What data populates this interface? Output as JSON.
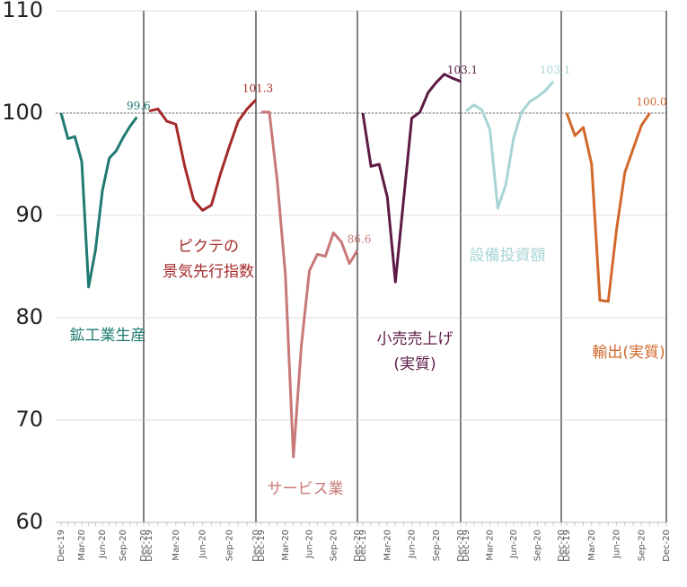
{
  "chart_data": [
    {
      "type": "line",
      "title": [
        "鉱工業生産"
      ],
      "color": "#1f7a72",
      "categories": [
        "Dec-19",
        null,
        null,
        "Mar-20",
        null,
        null,
        "Jun-20",
        null,
        null,
        "Sep-20",
        null,
        null,
        "Dec-20"
      ],
      "values": [
        100.0,
        97.5,
        97.7,
        95.3,
        83.0,
        86.6,
        92.4,
        95.6,
        96.3,
        97.6,
        98.7,
        99.6,
        null
      ],
      "value_labels": [
        null,
        null,
        null,
        null,
        null,
        null,
        null,
        null,
        null,
        null,
        null,
        "99.6",
        null
      ],
      "ylim": [
        60,
        110
      ],
      "yticks": [
        60,
        70,
        80,
        90,
        100,
        110
      ],
      "reference_line": 100
    },
    {
      "type": "line",
      "title": [
        "ピクテの",
        "景気先行指数"
      ],
      "color": "#a52a2a",
      "categories": [
        "Dec-19",
        null,
        null,
        "Mar-20",
        null,
        null,
        "Jun-20",
        null,
        null,
        "Sep-20",
        null,
        null,
        "Dec-20"
      ],
      "values": [
        100.2,
        100.4,
        99.2,
        98.9,
        94.8,
        91.5,
        90.5,
        91.0,
        94.0,
        96.7,
        99.2,
        100.4,
        101.3
      ],
      "value_labels": [
        null,
        null,
        null,
        null,
        null,
        null,
        null,
        null,
        null,
        null,
        null,
        null,
        "101.3"
      ],
      "ylim": [
        60,
        110
      ],
      "yticks": [
        60,
        70,
        80,
        90,
        100,
        110
      ],
      "reference_line": 100
    },
    {
      "type": "line",
      "title": [
        "サービス業"
      ],
      "color": "#c87878",
      "categories": [
        "Dec-19",
        null,
        null,
        "Mar-20",
        null,
        null,
        "Jun-20",
        null,
        null,
        "Sep-20",
        null,
        null,
        "Dec-20"
      ],
      "values": [
        100.1,
        100.1,
        93.3,
        84.2,
        66.4,
        77.3,
        84.6,
        86.2,
        86.0,
        88.3,
        87.4,
        85.3,
        86.6
      ],
      "value_labels": [
        null,
        null,
        null,
        null,
        null,
        null,
        null,
        null,
        null,
        null,
        null,
        null,
        "86.6"
      ],
      "ylim": [
        60,
        110
      ],
      "yticks": [
        60,
        70,
        80,
        90,
        100,
        110
      ],
      "reference_line": 100
    },
    {
      "type": "line",
      "title": [
        "小売売上げ",
        "(実質)"
      ],
      "color": "#5c1a44",
      "categories": [
        "Dec-19",
        null,
        null,
        "Mar-20",
        null,
        null,
        "Jun-20",
        null,
        null,
        "Sep-20",
        null,
        null,
        "Dec-20"
      ],
      "values": [
        100.0,
        94.8,
        95.0,
        91.8,
        83.5,
        91.5,
        99.5,
        100.1,
        102.0,
        103.0,
        103.8,
        103.4,
        103.1
      ],
      "value_labels": [
        null,
        null,
        null,
        null,
        null,
        null,
        null,
        null,
        null,
        null,
        null,
        null,
        "103.1"
      ],
      "ylim": [
        60,
        110
      ],
      "yticks": [
        60,
        70,
        80,
        90,
        100,
        110
      ],
      "reference_line": 100
    },
    {
      "type": "line",
      "title": [
        "設備投資額"
      ],
      "color": "#a8d4d4",
      "categories": [
        "Dec-19",
        null,
        null,
        "Mar-20",
        null,
        null,
        "Jun-20",
        null,
        null,
        "Sep-20",
        null,
        null,
        "Dec-20"
      ],
      "values": [
        100.2,
        100.8,
        100.3,
        98.4,
        90.7,
        93.0,
        97.6,
        100.1,
        101.1,
        101.6,
        102.2,
        103.1,
        null
      ],
      "value_labels": [
        null,
        null,
        null,
        null,
        null,
        null,
        null,
        null,
        null,
        null,
        null,
        "103.1",
        null
      ],
      "ylim": [
        60,
        110
      ],
      "yticks": [
        60,
        70,
        80,
        90,
        100,
        110
      ],
      "reference_line": 100
    },
    {
      "type": "line",
      "title": [
        "輸出(実質)"
      ],
      "color": "#d2692c",
      "categories": [
        "Dec-19",
        null,
        null,
        "Mar-20",
        null,
        null,
        "Jun-20",
        null,
        null,
        "Sep-20",
        null,
        null,
        "Dec-20"
      ],
      "values": [
        100.0,
        97.8,
        98.6,
        95.0,
        81.7,
        81.6,
        88.6,
        94.2,
        96.5,
        98.8,
        100.0,
        null,
        null
      ],
      "value_labels": [
        null,
        null,
        null,
        null,
        null,
        null,
        null,
        null,
        null,
        null,
        "100.0",
        null,
        null
      ],
      "ylim": [
        60,
        110
      ],
      "yticks": [
        60,
        70,
        80,
        90,
        100,
        110
      ],
      "reference_line": 100
    }
  ]
}
